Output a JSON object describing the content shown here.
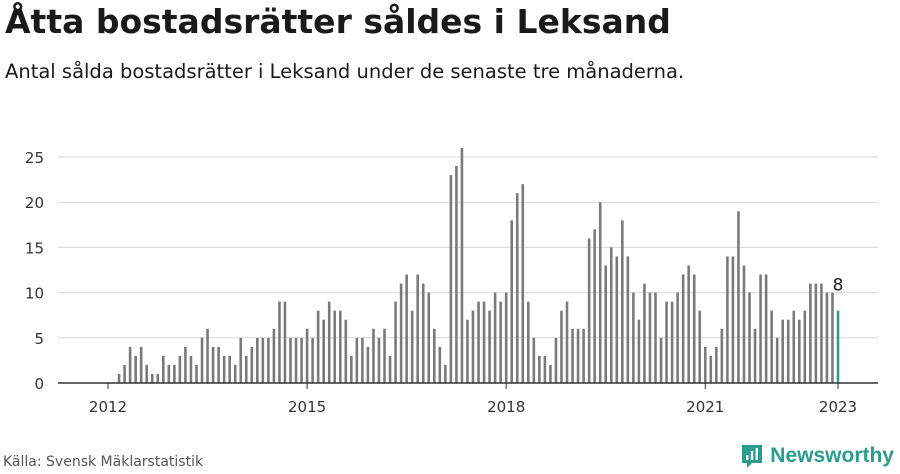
{
  "header": {
    "title": "Åtta bostadsrätter såldes i Leksand",
    "subtitle": "Antal sålda bostadsrätter i Leksand under de senaste tre månaderna."
  },
  "footer": {
    "source": "Källa: Svensk Mäklarstatistik",
    "brand": "Newsworthy",
    "brand_icon": "newsworthy-logo-icon"
  },
  "colors": {
    "bar": "#7a7a7a",
    "highlight": "#2a9d8f",
    "grid": "#d9d9d9",
    "axis": "#333333"
  },
  "chart_data": {
    "type": "bar",
    "title": "",
    "xlabel": "",
    "ylabel": "",
    "ylim": [
      0,
      25
    ],
    "yticks": [
      0,
      5,
      10,
      15,
      20,
      25
    ],
    "xticks": [
      "2012",
      "2015",
      "2018",
      "2021",
      "2023"
    ],
    "grid": true,
    "x_start": "2012-01",
    "x_end": "2023-01",
    "values": [
      0,
      0,
      1,
      2,
      4,
      3,
      4,
      2,
      1,
      1,
      3,
      2,
      2,
      3,
      4,
      3,
      2,
      5,
      6,
      4,
      4,
      3,
      3,
      2,
      5,
      3,
      4,
      5,
      5,
      5,
      6,
      9,
      9,
      5,
      5,
      5,
      6,
      5,
      8,
      7,
      9,
      8,
      8,
      7,
      3,
      5,
      5,
      4,
      6,
      5,
      6,
      3,
      9,
      11,
      12,
      8,
      12,
      11,
      10,
      6,
      4,
      2,
      23,
      24,
      26,
      7,
      8,
      9,
      9,
      8,
      10,
      9,
      10,
      18,
      21,
      22,
      9,
      5,
      3,
      3,
      2,
      5,
      8,
      9,
      6,
      6,
      6,
      16,
      17,
      20,
      13,
      15,
      14,
      18,
      14,
      10,
      7,
      11,
      10,
      10,
      5,
      9,
      9,
      10,
      12,
      13,
      12,
      8,
      4,
      3,
      4,
      6,
      14,
      14,
      19,
      13,
      10,
      6,
      12,
      12,
      8,
      5,
      7,
      7,
      8,
      7,
      8,
      11,
      11,
      11,
      10,
      10,
      8
    ],
    "highlight_last": true,
    "annotation": "8"
  }
}
